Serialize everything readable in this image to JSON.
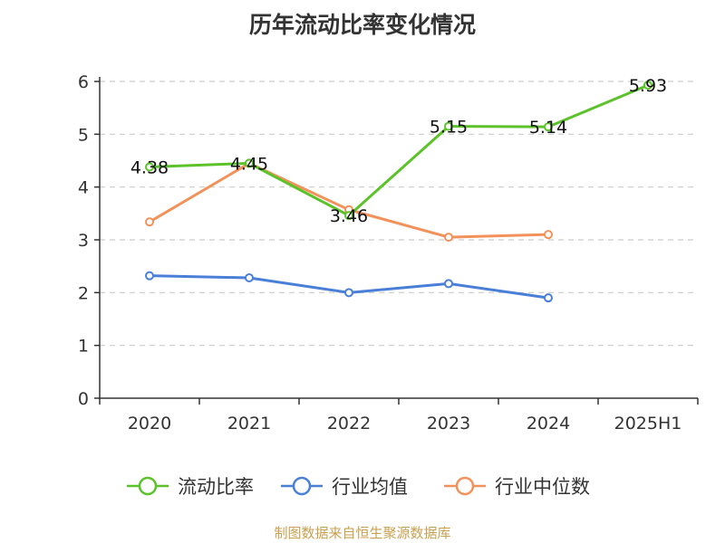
{
  "chart_data": {
    "type": "line",
    "title": "历年流动比率变化情况",
    "categories": [
      "2020",
      "2021",
      "2022",
      "2023",
      "2024",
      "2025H1"
    ],
    "ylim": [
      0,
      6
    ],
    "yticks": [
      "0",
      "1",
      "2",
      "3",
      "4",
      "5",
      "6"
    ],
    "grid": true,
    "legend_position": "bottom",
    "series": [
      {
        "name": "流动比率",
        "color": "#5cc22a",
        "values": [
          4.38,
          4.45,
          3.46,
          5.15,
          5.14,
          5.93
        ],
        "labels": [
          "4.38",
          "4.45",
          "3.46",
          "5.15",
          "5.14",
          "5.93"
        ]
      },
      {
        "name": "行业均值",
        "color": "#4a7fd8",
        "values": [
          2.32,
          2.28,
          2.0,
          2.17,
          1.9,
          null
        ]
      },
      {
        "name": "行业中位数",
        "color": "#f2925a",
        "values": [
          3.34,
          4.45,
          3.57,
          3.05,
          3.1,
          null
        ]
      }
    ]
  },
  "footer": {
    "source": "制图数据来自恒生聚源数据库"
  }
}
